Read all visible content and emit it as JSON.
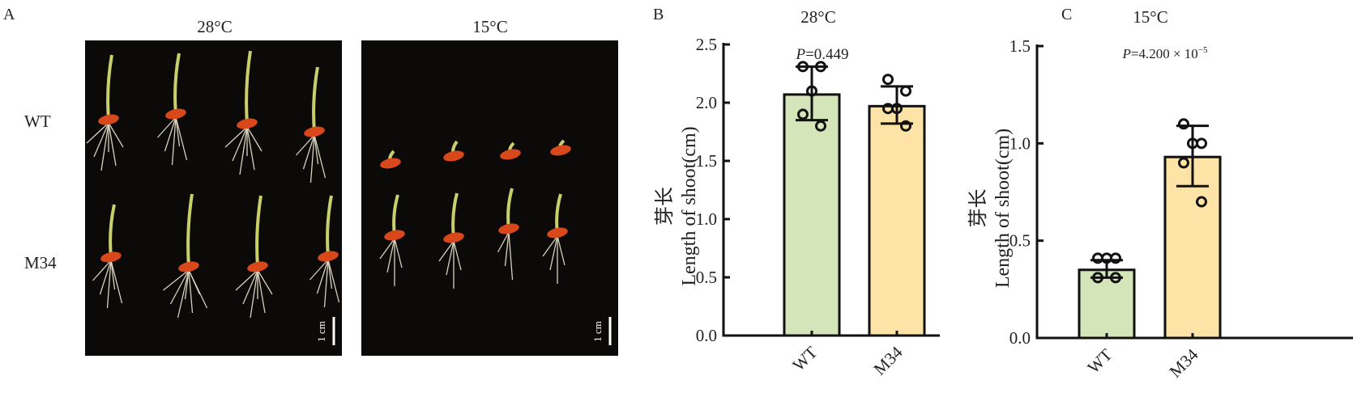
{
  "panel_a": {
    "label": "A",
    "col_titles": [
      "28°C",
      "15°C"
    ],
    "row_labels": [
      "WT",
      "M34"
    ],
    "scale_bar_label": "1 cm"
  },
  "chart_data": [
    {
      "type": "bar",
      "panel_label": "B",
      "title": "28°C",
      "annotation": "P=0.449",
      "annotation_italic": "P",
      "annotation_rest": "=0.449",
      "ylabel_cn": "芽长",
      "ylabel": "Length of shoot(cm)",
      "categories": [
        "WT",
        "M34"
      ],
      "values": [
        2.07,
        1.97
      ],
      "error_low": [
        1.85,
        1.82
      ],
      "error_high": [
        2.31,
        2.14
      ],
      "points": [
        [
          2.31,
          2.31,
          2.1,
          1.9,
          1.8
        ],
        [
          2.2,
          2.1,
          1.95,
          1.95,
          1.8
        ]
      ],
      "colors": [
        "#d4e6b9",
        "#fde4a6"
      ],
      "ylim": [
        0,
        2.5
      ],
      "yticks": [
        "0.0",
        "0.5",
        "1.0",
        "1.5",
        "2.0",
        "2.5"
      ],
      "grid": false
    },
    {
      "type": "bar",
      "panel_label": "C",
      "title": "15°C",
      "annotation_italic": "P",
      "annotation_rest": "=4.200 × 10",
      "annotation_exp": "−5",
      "ylabel_cn": "芽长",
      "ylabel": "Length of shoot(cm)",
      "categories": [
        "WT",
        "M34"
      ],
      "values": [
        0.35,
        0.93
      ],
      "error_low": [
        0.31,
        0.78
      ],
      "error_high": [
        0.4,
        1.09
      ],
      "points": [
        [
          0.41,
          0.41,
          0.41,
          0.31,
          0.31
        ],
        [
          1.1,
          1.0,
          1.0,
          0.9,
          0.7
        ]
      ],
      "colors": [
        "#d4e6b9",
        "#fde4a6"
      ],
      "ylim": [
        0,
        1.5
      ],
      "yticks": [
        "0.0",
        "0.5",
        "1.0",
        "1.5"
      ],
      "grid": false
    }
  ]
}
